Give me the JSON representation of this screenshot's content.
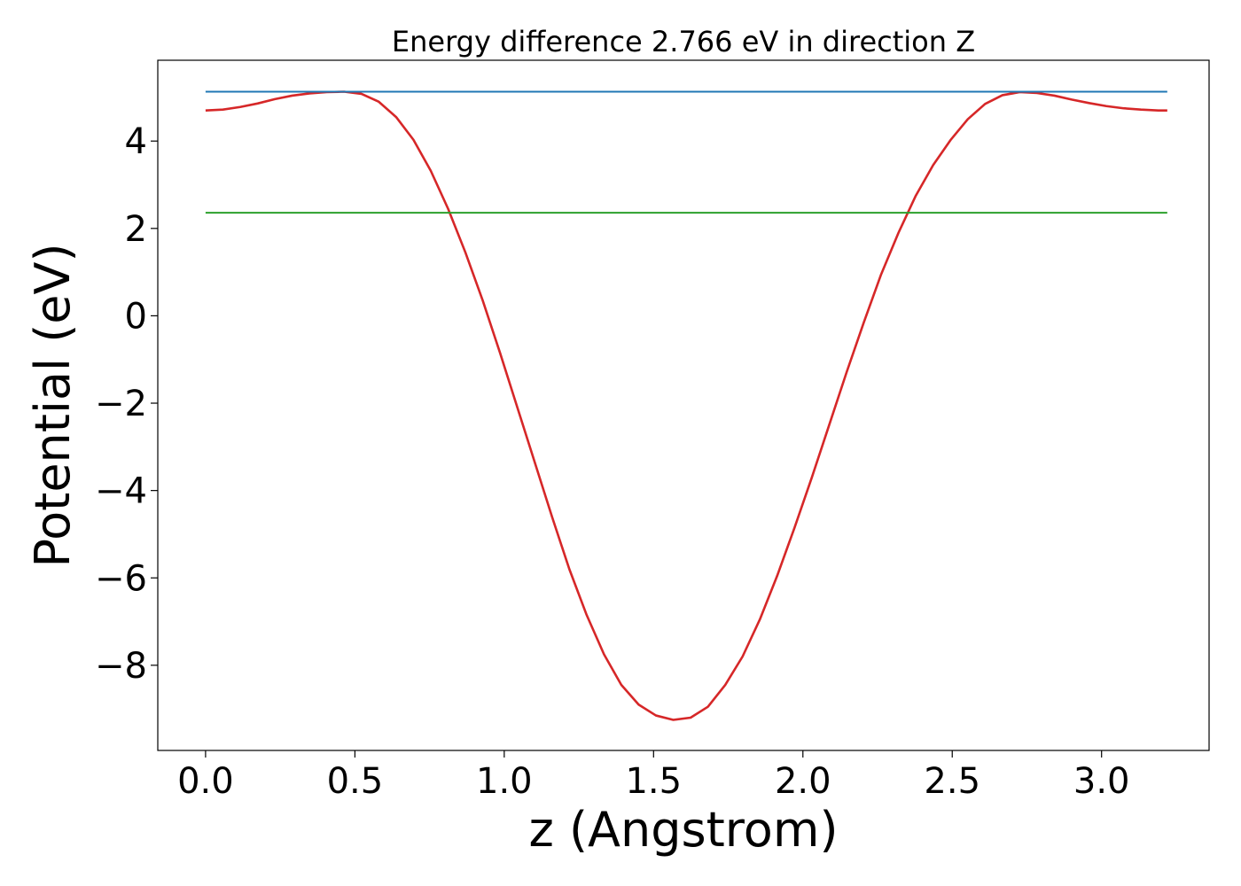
{
  "chart_data": {
    "type": "line",
    "title": "Energy difference 2.766 eV in direction Z",
    "xlabel": "z (Angstrom)",
    "ylabel": "Potential (eV)",
    "xlim": [
      -0.16,
      3.36
    ],
    "ylim": [
      -9.95,
      5.85
    ],
    "grid": false,
    "x_ticks": [
      0.0,
      0.5,
      1.0,
      1.5,
      2.0,
      2.5,
      3.0
    ],
    "x_tick_labels": [
      "0.0",
      "0.5",
      "1.0",
      "1.5",
      "2.0",
      "2.5",
      "3.0"
    ],
    "y_ticks": [
      4,
      2,
      0,
      -2,
      -4,
      -6,
      -8
    ],
    "y_tick_labels": [
      "4",
      "2",
      "0",
      "−2",
      "−4",
      "−6",
      "−8"
    ],
    "series": [
      {
        "color": "#d62728",
        "x": [
          0.0,
          0.058,
          0.116,
          0.174,
          0.232,
          0.29,
          0.348,
          0.406,
          0.464,
          0.522,
          0.58,
          0.638,
          0.696,
          0.754,
          0.812,
          0.87,
          0.928,
          0.986,
          1.044,
          1.102,
          1.16,
          1.218,
          1.276,
          1.334,
          1.392,
          1.45,
          1.508,
          1.566,
          1.624,
          1.682,
          1.74,
          1.798,
          1.856,
          1.914,
          1.972,
          2.03,
          2.088,
          2.146,
          2.204,
          2.262,
          2.32,
          2.378,
          2.436,
          2.494,
          2.552,
          2.61,
          2.668,
          2.726,
          2.784,
          2.842,
          2.9,
          2.958,
          3.016,
          3.074,
          3.132,
          3.19,
          3.22
        ],
        "y": [
          4.7,
          4.72,
          4.78,
          4.86,
          4.96,
          5.04,
          5.09,
          5.12,
          5.13,
          5.08,
          4.9,
          4.55,
          4.03,
          3.32,
          2.45,
          1.45,
          0.35,
          -0.85,
          -2.1,
          -3.35,
          -4.6,
          -5.8,
          -6.85,
          -7.75,
          -8.45,
          -8.9,
          -9.15,
          -9.25,
          -9.2,
          -8.95,
          -8.45,
          -7.8,
          -6.95,
          -5.95,
          -4.85,
          -3.7,
          -2.5,
          -1.3,
          -0.15,
          0.95,
          1.9,
          2.75,
          3.45,
          4.02,
          4.5,
          4.85,
          5.05,
          5.12,
          5.1,
          5.04,
          4.95,
          4.87,
          4.8,
          4.75,
          4.72,
          4.7,
          4.7
        ]
      },
      {
        "color": "#1f77b4",
        "x": [
          0.0,
          3.22
        ],
        "y": [
          5.13,
          5.13
        ]
      },
      {
        "color": "#2ca02c",
        "x": [
          0.0,
          3.22
        ],
        "y": [
          2.36,
          2.36
        ]
      }
    ]
  }
}
